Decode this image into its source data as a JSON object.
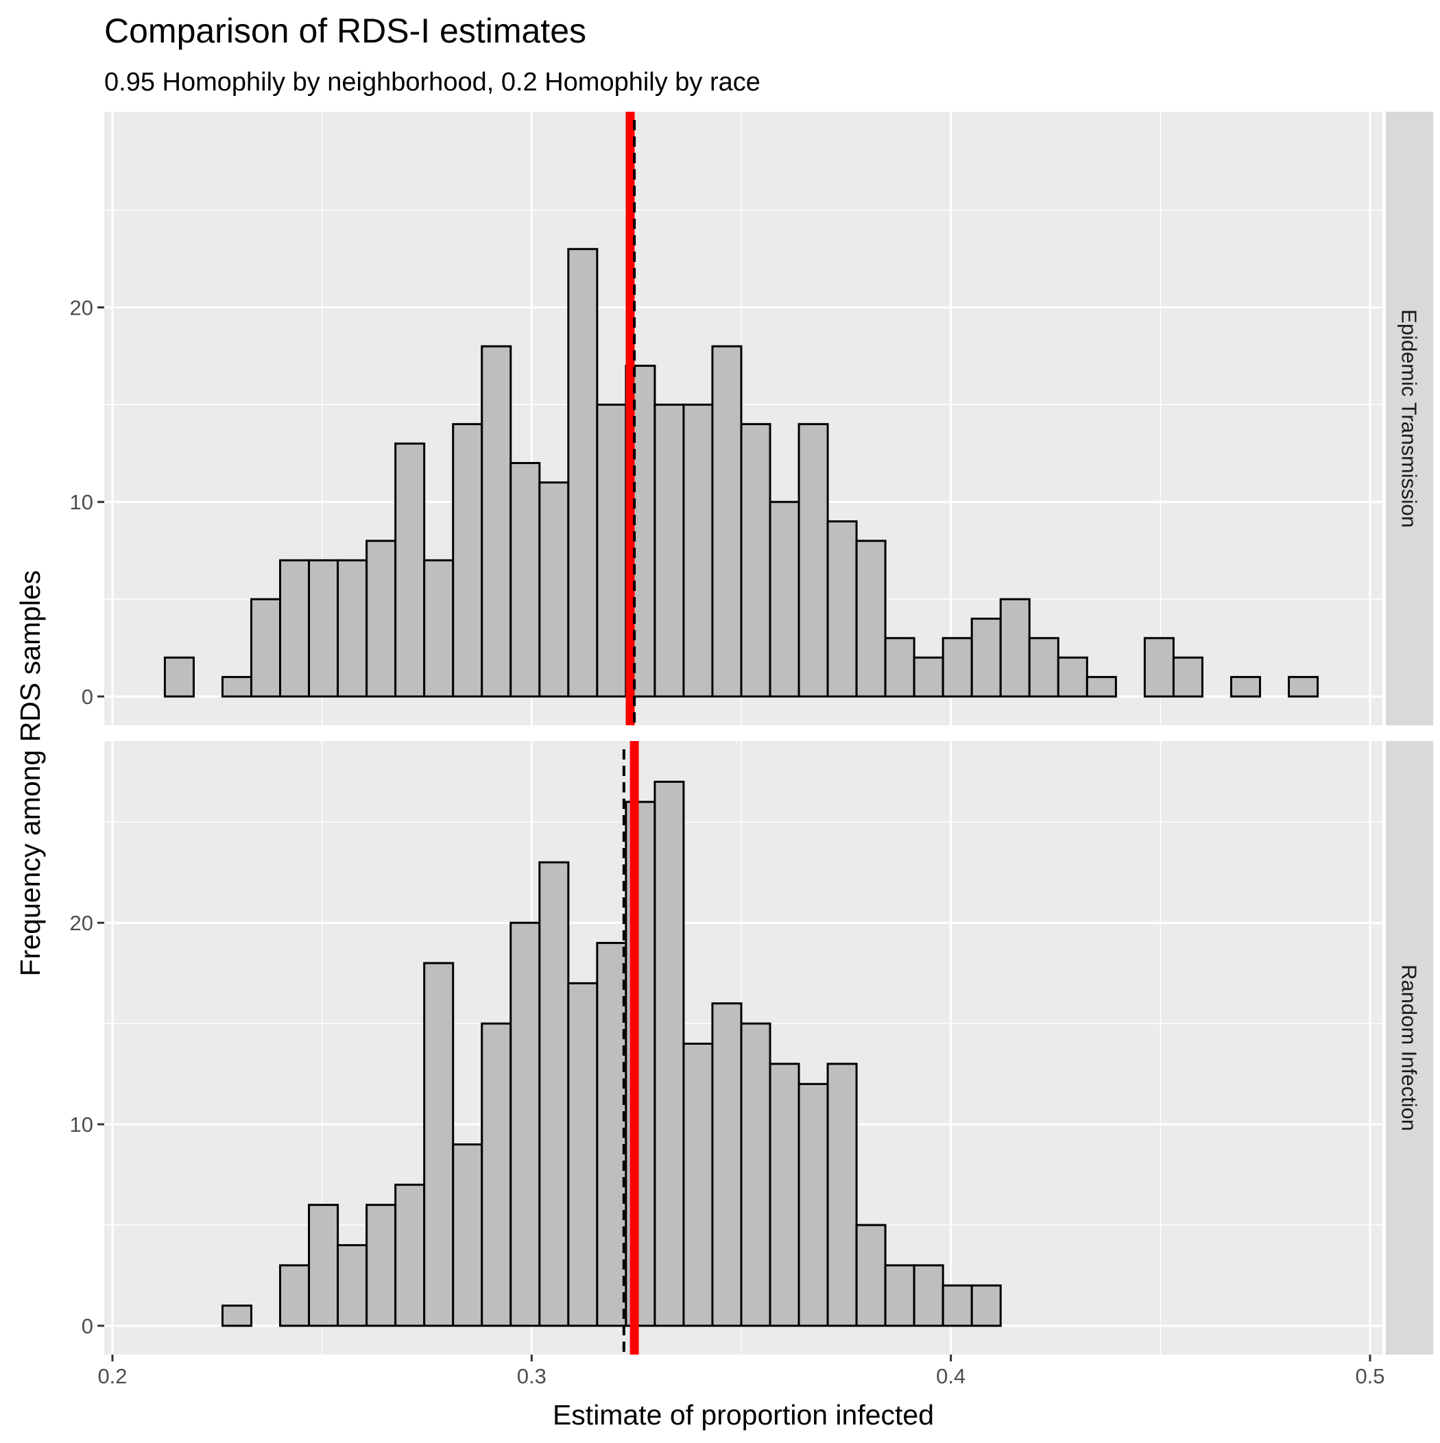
{
  "chart_data": {
    "type": "bar",
    "title": "Comparison of RDS-I estimates",
    "subtitle": "0.95 Homophily by neighborhood, 0.2 Homophily by race",
    "xlabel": "Estimate of proportion infected",
    "ylabel": "Frequency among RDS samples",
    "xlim": [
      0.2,
      0.5
    ],
    "x_ticks": [
      "0.2",
      "0.3",
      "0.4",
      "0.5"
    ],
    "y_ticks": [
      "0",
      "10",
      "20"
    ],
    "bin_start": 0.2125,
    "bin_width": 0.006875,
    "grid": true,
    "panels": [
      {
        "label": "Epidemic Transmission",
        "ylim": [
          0,
          29
        ],
        "counts": [
          2,
          0,
          1,
          5,
          7,
          7,
          7,
          8,
          13,
          7,
          14,
          18,
          12,
          11,
          23,
          15,
          17,
          15,
          15,
          18,
          14,
          10,
          14,
          9,
          8,
          3,
          2,
          3,
          4,
          5,
          3,
          2,
          1,
          0,
          3,
          2,
          0,
          1,
          0,
          1
        ],
        "vline_solid": 0.3235,
        "vline_dashed": 0.3245
      },
      {
        "label": "Random Infection",
        "ylim": [
          0,
          28
        ],
        "counts": [
          0,
          0,
          1,
          0,
          3,
          6,
          4,
          6,
          7,
          18,
          9,
          15,
          20,
          23,
          17,
          19,
          26,
          27,
          14,
          16,
          15,
          13,
          12,
          13,
          5,
          3,
          3,
          2,
          2,
          0,
          0,
          0,
          0,
          0,
          0,
          0,
          0,
          0,
          0,
          0
        ],
        "vline_solid": 0.3245,
        "vline_dashed": 0.322
      }
    ],
    "colors": {
      "bar_fill": "#bebebe",
      "bar_stroke": "#000000",
      "panel_bg": "#ebebeb",
      "grid": "#ffffff",
      "strip_bg": "#d9d9d9",
      "vline_solid": "#ff0000",
      "vline_dashed": "#000000"
    }
  }
}
